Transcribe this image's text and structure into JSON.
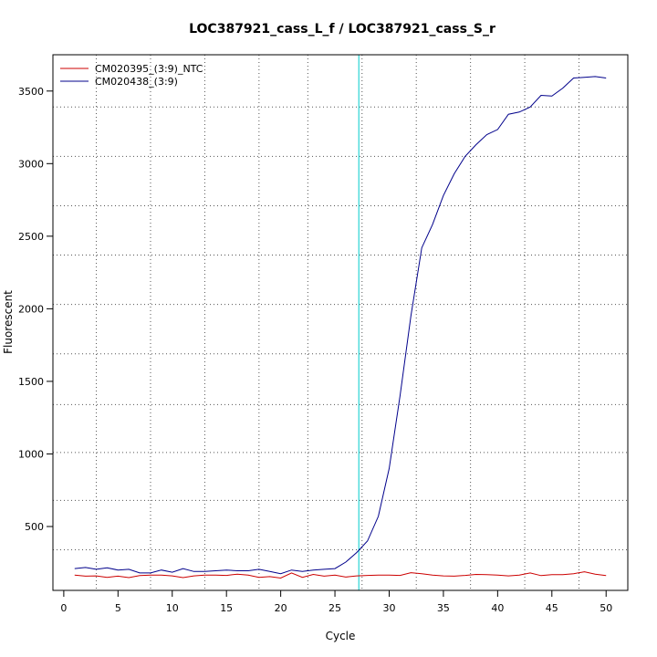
{
  "chart_data": {
    "type": "line",
    "title": "LOC387921_cass_L_f / LOC387921_cass_S_r",
    "xlabel": "Cycle",
    "ylabel": "Fluorescent",
    "xlim": [
      -1,
      52
    ],
    "ylim": [
      60,
      3750
    ],
    "x_ticks": [
      0,
      5,
      10,
      15,
      20,
      25,
      30,
      35,
      40,
      45,
      50
    ],
    "y_ticks": [
      500,
      1000,
      1500,
      2000,
      2500,
      3000,
      3500
    ],
    "grid": true,
    "grid_x": [
      3,
      8,
      13,
      18,
      22.5,
      27.5,
      32.5,
      37.5,
      42.5,
      47.5
    ],
    "grid_y": [
      340,
      680,
      1010,
      1340,
      1690,
      2030,
      2370,
      2710,
      3050,
      3390
    ],
    "threshold_x": 27.2,
    "threshold_color": "#00cccc",
    "legend_position": "top-left",
    "x": [
      1,
      2,
      3,
      4,
      5,
      6,
      7,
      8,
      9,
      10,
      11,
      12,
      13,
      14,
      15,
      16,
      17,
      18,
      19,
      20,
      21,
      22,
      23,
      24,
      25,
      26,
      27,
      28,
      29,
      30,
      31,
      32,
      33,
      34,
      35,
      36,
      37,
      38,
      39,
      40,
      41,
      42,
      43,
      44,
      45,
      46,
      47,
      48,
      49,
      50
    ],
    "series": [
      {
        "name": "CM020395_(3:9)_NTC",
        "color": "#cc0000",
        "values": [
          165,
          158,
          160,
          150,
          158,
          148,
          162,
          165,
          165,
          160,
          148,
          160,
          165,
          165,
          163,
          172,
          165,
          150,
          155,
          145,
          180,
          150,
          170,
          158,
          165,
          152,
          160,
          163,
          165,
          165,
          163,
          182,
          175,
          165,
          160,
          158,
          163,
          170,
          168,
          165,
          160,
          165,
          180,
          162,
          168,
          168,
          175,
          188,
          172,
          162
        ]
      },
      {
        "name": "CM020438_(3:9)",
        "color": "#00008b",
        "values": [
          210,
          218,
          205,
          215,
          200,
          205,
          180,
          180,
          200,
          185,
          210,
          190,
          190,
          195,
          200,
          195,
          195,
          205,
          190,
          175,
          200,
          190,
          200,
          205,
          210,
          255,
          320,
          400,
          570,
          900,
          1400,
          1950,
          2420,
          2580,
          2780,
          2930,
          3050,
          3130,
          3200,
          3235,
          3340,
          3355,
          3390,
          3470,
          3465,
          3520,
          3590,
          3595,
          3600,
          3590
        ]
      }
    ]
  }
}
